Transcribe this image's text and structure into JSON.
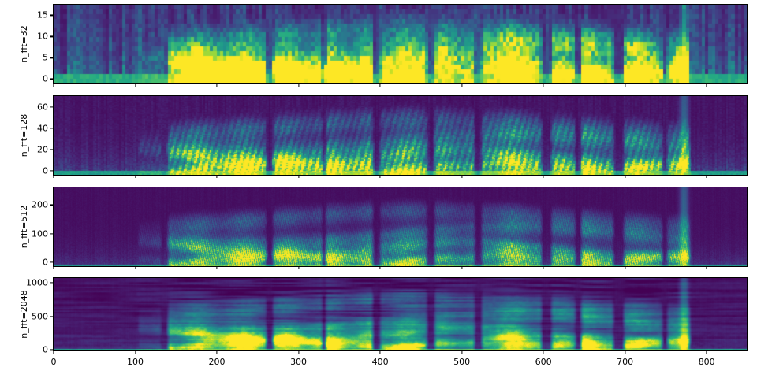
{
  "chart_data": {
    "type": "heatmap",
    "subtype": "spectrogram-comparison",
    "title": "",
    "colormap": "viridis",
    "legend": "none",
    "grid": "off",
    "x_axis": {
      "label": "",
      "min": 0,
      "max": 851,
      "ticks": [
        0,
        100,
        200,
        300,
        400,
        500,
        600,
        700,
        800
      ]
    },
    "panels": [
      {
        "label": "n_fft=32",
        "n_fft": 32,
        "bins": 17,
        "yticks": [
          0,
          5,
          10,
          15
        ],
        "ymin": -1.4,
        "ymax": 17.5,
        "cell": 4,
        "seed": 3,
        "gain": 1.25,
        "adecay": 2.6,
        "anamp": 0.55,
        "striation": 0,
        "smooth": 0,
        "fbase": 0.13,
        "flow": 0.2,
        "fdecay": 1.8,
        "fcol": 0.55,
        "rstreak": 0,
        "bfrac": 0.115,
        "bsil": 0.62,
        "bact": 0.95,
        "wm": 1.8
      },
      {
        "label": "n_fft=128",
        "n_fft": 128,
        "bins": 65,
        "yticks": [
          0,
          20,
          40,
          60
        ],
        "ymin": -5.5,
        "ymax": 70,
        "cell": 2,
        "seed": 7,
        "gain": 1.05,
        "adecay": 3.2,
        "anamp": 0.5,
        "striation": 1,
        "smooth": 0,
        "fbase": 0.055,
        "flow": 0.16,
        "fdecay": 5.0,
        "fcol": 0.35,
        "rstreak": 0,
        "bfrac": 0.032,
        "bsil": 0.55,
        "bact": 0.95,
        "wm": 1.25
      },
      {
        "label": "n_fft=512",
        "n_fft": 512,
        "bins": 128,
        "yticks": [
          0,
          100,
          200
        ],
        "ymin": -20,
        "ymax": 262,
        "cell": 1,
        "seed": 13,
        "gain": 0.95,
        "adecay": 3.6,
        "anamp": 0.5,
        "striation": 1,
        "smooth": 0,
        "fbase": 0.04,
        "flow": 0.11,
        "fdecay": 6.5,
        "fcol": 0.22,
        "rstreak": 0,
        "bfrac": 0.017,
        "bsil": 0.5,
        "bact": 0.88,
        "wm": 1.0
      },
      {
        "label": "n_fft=2048",
        "n_fft": 2048,
        "bins": 110,
        "yticks": [
          0,
          500,
          1000
        ],
        "ymin": -30,
        "ymax": 1065,
        "cell": 1,
        "seed": 19,
        "gain": 0.92,
        "adecay": 2.9,
        "anamp": 0.3,
        "striation": 0,
        "smooth": 1,
        "fbase": 0.05,
        "flow": 0.1,
        "fdecay": 6.0,
        "fcol": 0.08,
        "rstreak": 0.13,
        "bfrac": 0.013,
        "bsil": 0.55,
        "bact": 0.9,
        "wm": 1.0
      }
    ],
    "speech_segments": [
      {
        "start": 104,
        "end": 133,
        "level": 0.3,
        "low": 0.15
      },
      {
        "start": 140,
        "end": 261,
        "level": 1.0,
        "low": 1.0
      },
      {
        "start": 269,
        "end": 330,
        "level": 0.95,
        "low": 0.9
      },
      {
        "start": 334,
        "end": 392,
        "level": 1.0,
        "low": 1.05
      },
      {
        "start": 401,
        "end": 459,
        "level": 0.95,
        "low": 0.95
      },
      {
        "start": 468,
        "end": 517,
        "level": 0.85,
        "low": 0.6
      },
      {
        "start": 526,
        "end": 599,
        "level": 1.0,
        "low": 1.1
      },
      {
        "start": 611,
        "end": 641,
        "level": 0.8,
        "low": 0.7
      },
      {
        "start": 648,
        "end": 687,
        "level": 0.95,
        "low": 1.0
      },
      {
        "start": 700,
        "end": 747,
        "level": 0.9,
        "low": 0.95
      },
      {
        "start": 753,
        "end": 781,
        "level": 0.75,
        "low": 0.55
      }
    ],
    "transient": {
      "t": 774,
      "strength": 0.38,
      "width": 3.5
    },
    "viridis_stops": [
      [
        68,
        1,
        84
      ],
      [
        72,
        36,
        117
      ],
      [
        64,
        67,
        135
      ],
      [
        52,
        95,
        141
      ],
      [
        41,
        120,
        142
      ],
      [
        32,
        144,
        140
      ],
      [
        34,
        168,
        132
      ],
      [
        68,
        190,
        112
      ],
      [
        122,
        209,
        81
      ],
      [
        189,
        222,
        38
      ],
      [
        253,
        231,
        37
      ]
    ]
  }
}
